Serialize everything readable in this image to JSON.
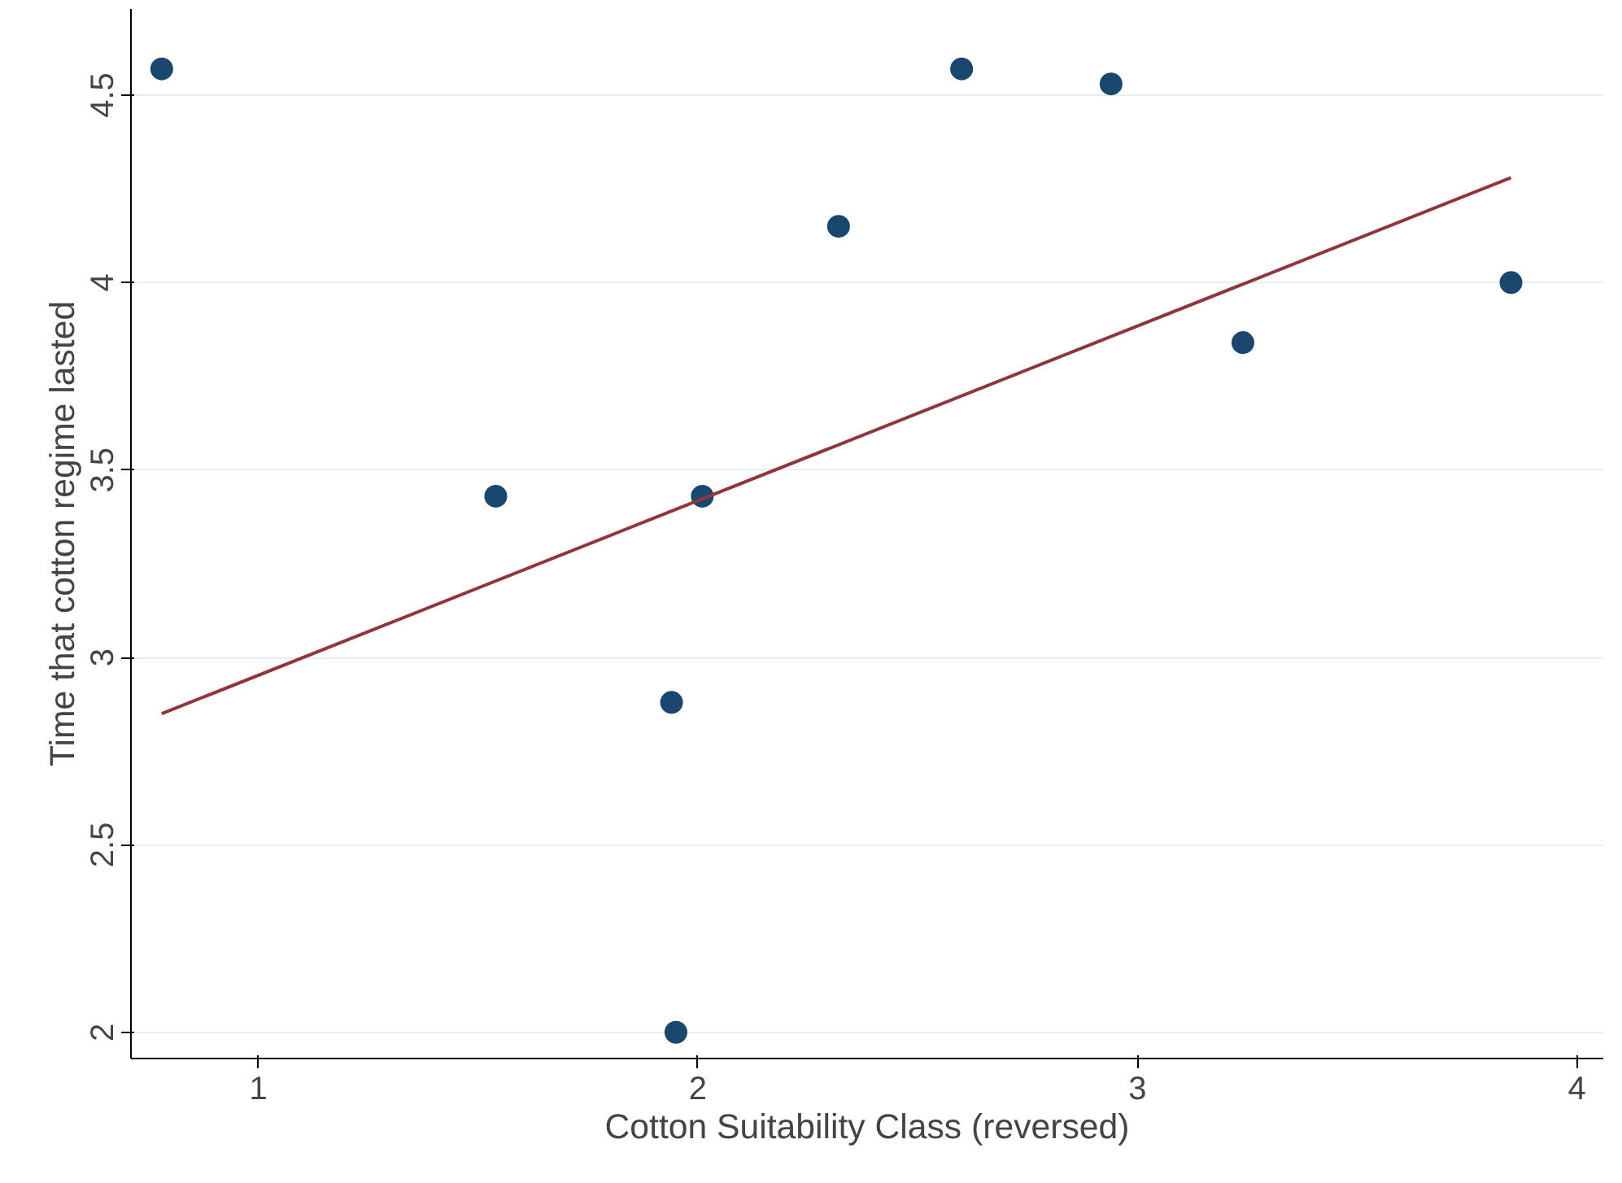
{
  "chart_data": {
    "type": "scatter",
    "xlabel": "Cotton Suitability Class (reversed)",
    "ylabel": "Time that cotton regime lasted",
    "xlim": [
      0.71,
      4.06
    ],
    "ylim": [
      1.93,
      4.73
    ],
    "xticks": [
      1,
      2,
      3,
      4
    ],
    "yticks": [
      2,
      2.5,
      3,
      3.5,
      4,
      4.5
    ],
    "grid": "y",
    "series": [
      {
        "color": "#1a476f",
        "x": [
          0.78,
          1.54,
          1.94,
          1.95,
          2.01,
          2.32,
          2.6,
          2.94,
          3.24,
          3.85
        ],
        "values": [
          4.57,
          3.43,
          2.88,
          2.0,
          3.43,
          4.15,
          4.57,
          4.53,
          3.84,
          4.0
        ]
      },
      {
        "type": "line",
        "color": "#90353b",
        "x": [
          0.78,
          3.85
        ],
        "values": [
          2.85,
          4.28
        ]
      }
    ]
  }
}
